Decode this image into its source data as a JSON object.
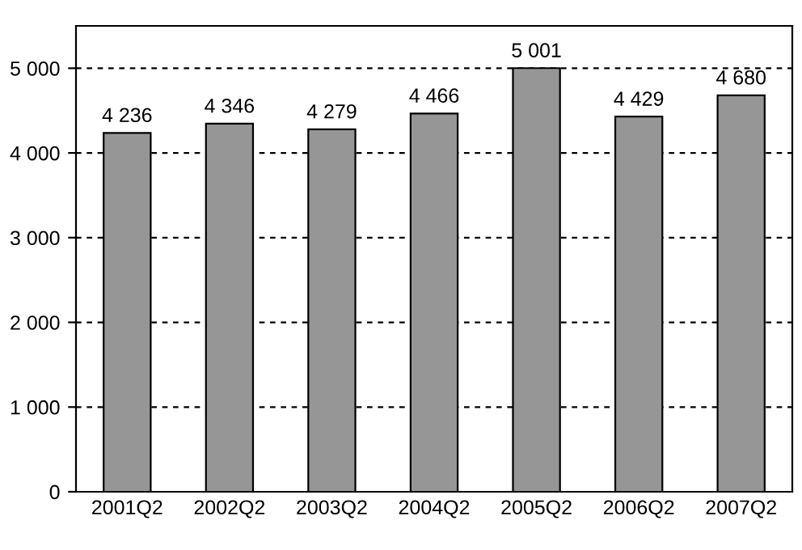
{
  "chart_data": {
    "type": "bar",
    "categories": [
      "2001Q2",
      "2002Q2",
      "2003Q2",
      "2004Q2",
      "2005Q2",
      "2006Q2",
      "2007Q2"
    ],
    "values": [
      4236,
      4346,
      4279,
      4466,
      5001,
      4429,
      4680
    ],
    "value_labels": [
      "4 236",
      "4 346",
      "4 279",
      "4 466",
      "5 001",
      "4 429",
      "4 680"
    ],
    "color": "#969696",
    "ylim": [
      0,
      5500
    ],
    "yticks": [
      0,
      {
        "value": 1000,
        "label": "1 000"
      },
      {
        "value": 2000,
        "label": "2 000"
      },
      {
        "value": 3000,
        "label": "3 000"
      },
      {
        "value": 4000,
        "label": "4 000"
      },
      {
        "value": 5000,
        "label": "5 000"
      }
    ],
    "grid": "y"
  }
}
